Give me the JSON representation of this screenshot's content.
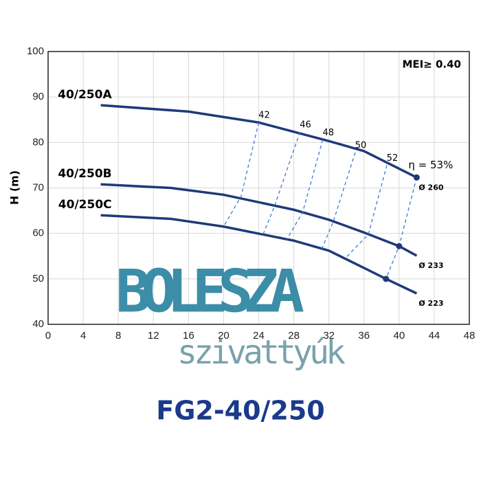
{
  "chart_data": {
    "type": "line",
    "title": "FG2-40/250",
    "ylabel": "H (m)",
    "annotation": "MEI≥ 0.40",
    "watermark": [
      "BOLESZA",
      "szivattyúk"
    ],
    "xlim": [
      0,
      48
    ],
    "xticks": [
      0,
      4,
      8,
      12,
      16,
      20,
      24,
      28,
      32,
      36,
      40,
      44,
      48
    ],
    "ylim": [
      40,
      100
    ],
    "yticks": [
      40,
      50,
      60,
      70,
      80,
      90,
      100
    ],
    "grid": true,
    "series": [
      {
        "name": "40/250A",
        "diameter": "Ø 260",
        "color": "#1f3a7a",
        "style": "solid",
        "x": [
          6,
          16,
          24,
          32,
          36,
          42
        ],
        "values": [
          88.2,
          86.8,
          84.4,
          80.3,
          78.1,
          72.3
        ]
      },
      {
        "name": "40/250B",
        "diameter": "Ø 233",
        "color": "#1f3a7a",
        "style": "solid",
        "x": [
          6,
          14,
          20,
          28,
          32,
          36,
          40,
          42
        ],
        "values": [
          70.8,
          70.0,
          68.5,
          65.2,
          63.0,
          60.2,
          57.2,
          55.1
        ]
      },
      {
        "name": "40/250C",
        "diameter": "Ø 223",
        "color": "#1f3a7a",
        "style": "solid",
        "x": [
          6,
          14,
          20,
          28,
          32,
          36,
          38.5,
          42
        ],
        "values": [
          64.0,
          63.2,
          61.5,
          58.4,
          56.2,
          52.4,
          50.0,
          46.8
        ]
      },
      {
        "name": "42",
        "color": "#3a7bd5",
        "style": "dashed",
        "x": [
          24,
          22,
          20
        ],
        "values": [
          84.4,
          68.2,
          61.5
        ]
      },
      {
        "name": "46",
        "color": "#3a7bd5",
        "style": "dashed",
        "x": [
          28.7,
          25.8,
          24.5
        ],
        "values": [
          82.3,
          66.0,
          59.8
        ]
      },
      {
        "name": "48",
        "color": "#3a7bd5",
        "style": "dashed",
        "x": [
          31.3,
          29,
          27.2
        ],
        "values": [
          80.6,
          64.6,
          58.7
        ]
      },
      {
        "name": "50",
        "color": "#3a7bd5",
        "style": "dashed",
        "x": [
          35,
          32.5,
          31.2
        ],
        "values": [
          77.8,
          62.6,
          56.6
        ]
      },
      {
        "name": "52",
        "color": "#3a7bd5",
        "style": "dashed",
        "x": [
          38.6,
          36.5,
          34
        ],
        "values": [
          75.0,
          59.8,
          54.8
        ]
      },
      {
        "name": "η = 53%",
        "color": "#3a7bd5",
        "style": "dashed",
        "markers": true,
        "x": [
          42,
          40,
          38.5
        ],
        "values": [
          72.3,
          57.2,
          50.0
        ]
      }
    ]
  }
}
